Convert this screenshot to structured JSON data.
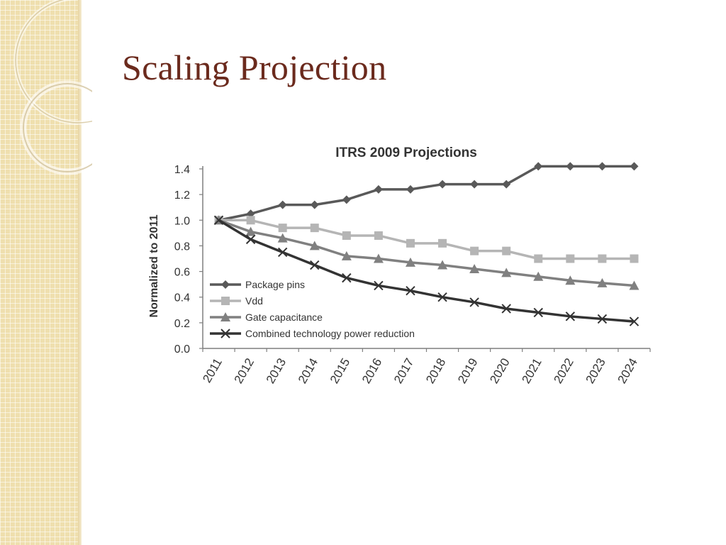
{
  "slide": {
    "title": "Scaling Projection"
  },
  "chart_data": {
    "type": "line",
    "title": "ITRS 2009 Projections",
    "xlabel": "",
    "ylabel": "Normalized to 2011",
    "categories": [
      "2011",
      "2012",
      "2013",
      "2014",
      "2015",
      "2016",
      "2017",
      "2018",
      "2019",
      "2020",
      "2021",
      "2022",
      "2023",
      "2024"
    ],
    "ylim": [
      0,
      1.4
    ],
    "yticks": [
      "0.0",
      "0.2",
      "0.4",
      "0.6",
      "0.8",
      "1.0",
      "1.2",
      "1.4"
    ],
    "grid": false,
    "legend_position": "lower-left",
    "series": [
      {
        "name": "Package pins",
        "color": "#595959",
        "marker": "diamond",
        "values": [
          1.0,
          1.05,
          1.12,
          1.12,
          1.16,
          1.24,
          1.24,
          1.28,
          1.28,
          1.28,
          1.42,
          1.42,
          1.42,
          1.42
        ]
      },
      {
        "name": "Vdd",
        "color": "#b5b5b5",
        "marker": "square",
        "values": [
          1.0,
          1.0,
          0.94,
          0.94,
          0.88,
          0.88,
          0.82,
          0.82,
          0.76,
          0.76,
          0.7,
          0.7,
          0.7,
          0.7
        ]
      },
      {
        "name": "Gate capacitance",
        "color": "#808080",
        "marker": "triangle",
        "values": [
          1.0,
          0.91,
          0.86,
          0.8,
          0.72,
          0.7,
          0.67,
          0.65,
          0.62,
          0.59,
          0.56,
          0.53,
          0.51,
          0.49
        ]
      },
      {
        "name": "Combined technology power reduction",
        "color": "#333333",
        "marker": "x",
        "values": [
          1.0,
          0.85,
          0.75,
          0.65,
          0.55,
          0.49,
          0.45,
          0.4,
          0.36,
          0.31,
          0.28,
          0.25,
          0.23,
          0.21
        ]
      }
    ]
  }
}
